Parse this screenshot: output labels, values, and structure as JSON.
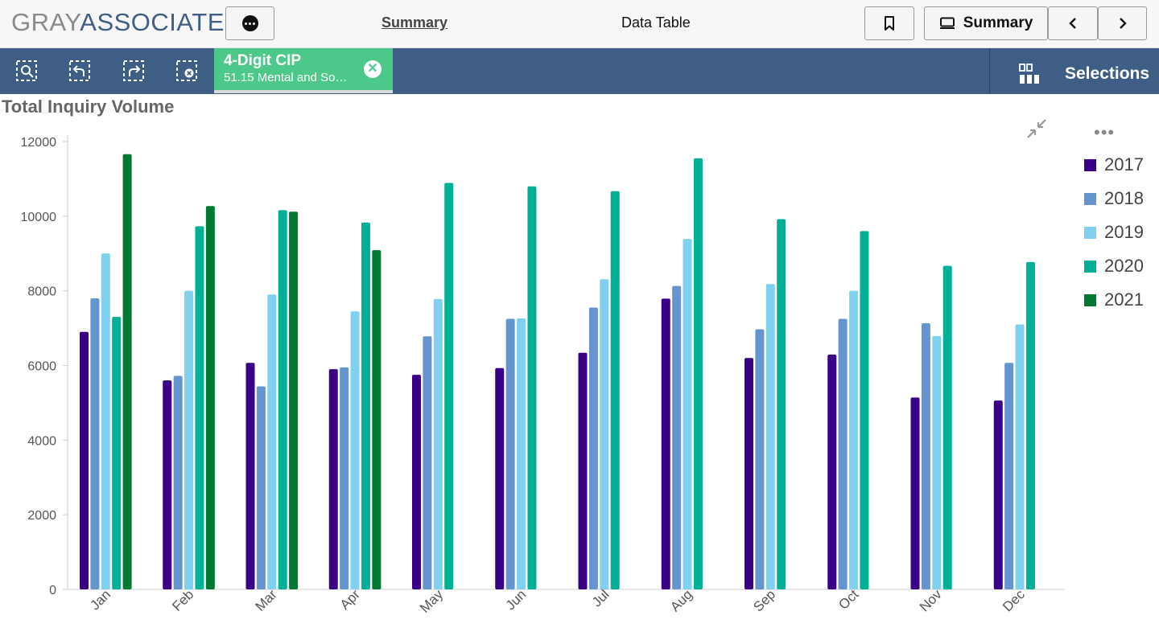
{
  "header": {
    "logo_part1": "GRAY",
    "logo_part2": "ASSOCIATES",
    "nav_summary": "Summary",
    "nav_datatable": "Data Table",
    "summary_button": "Summary"
  },
  "selection_chip": {
    "title": "4-Digit CIP",
    "subtitle": "51.15 Mental and So…"
  },
  "toolbar": {
    "selections_label": "Selections"
  },
  "colors": {
    "toolbar": "#3e5e85",
    "chip": "#4cc88a",
    "2017": "#3a0088",
    "2018": "#6495cf",
    "2019": "#80d0f0",
    "2020": "#00b096",
    "2021": "#007a33"
  },
  "chart_data": {
    "type": "bar",
    "title": "Total Inquiry Volume",
    "categories": [
      "Jan",
      "Feb",
      "Mar",
      "Apr",
      "May",
      "Jun",
      "Jul",
      "Aug",
      "Sep",
      "Oct",
      "Nov",
      "Dec"
    ],
    "ylim": [
      0,
      12000
    ],
    "yticks": [
      0,
      2000,
      4000,
      6000,
      8000,
      10000,
      12000
    ],
    "grid": false,
    "legend_position": "right",
    "series": [
      {
        "name": "2017",
        "color": "#3a0088",
        "values": [
          6900,
          5600,
          6070,
          5900,
          5750,
          5930,
          6340,
          7790,
          6200,
          6290,
          5140,
          5060
        ]
      },
      {
        "name": "2018",
        "color": "#6495cf",
        "values": [
          7800,
          5720,
          5440,
          5950,
          6780,
          7250,
          7550,
          8130,
          6970,
          7250,
          7130,
          6070
        ]
      },
      {
        "name": "2019",
        "color": "#80d0f0",
        "values": [
          9000,
          8000,
          7900,
          7450,
          7780,
          7260,
          8310,
          9390,
          8180,
          8000,
          6790,
          7100
        ]
      },
      {
        "name": "2020",
        "color": "#00b096",
        "values": [
          7300,
          9730,
          10160,
          9830,
          10890,
          10800,
          10670,
          11550,
          9920,
          9600,
          8670,
          8770
        ]
      },
      {
        "name": "2021",
        "color": "#007a33",
        "values": [
          11660,
          10270,
          10120,
          9090,
          null,
          null,
          null,
          null,
          null,
          null,
          null,
          null
        ]
      }
    ]
  }
}
